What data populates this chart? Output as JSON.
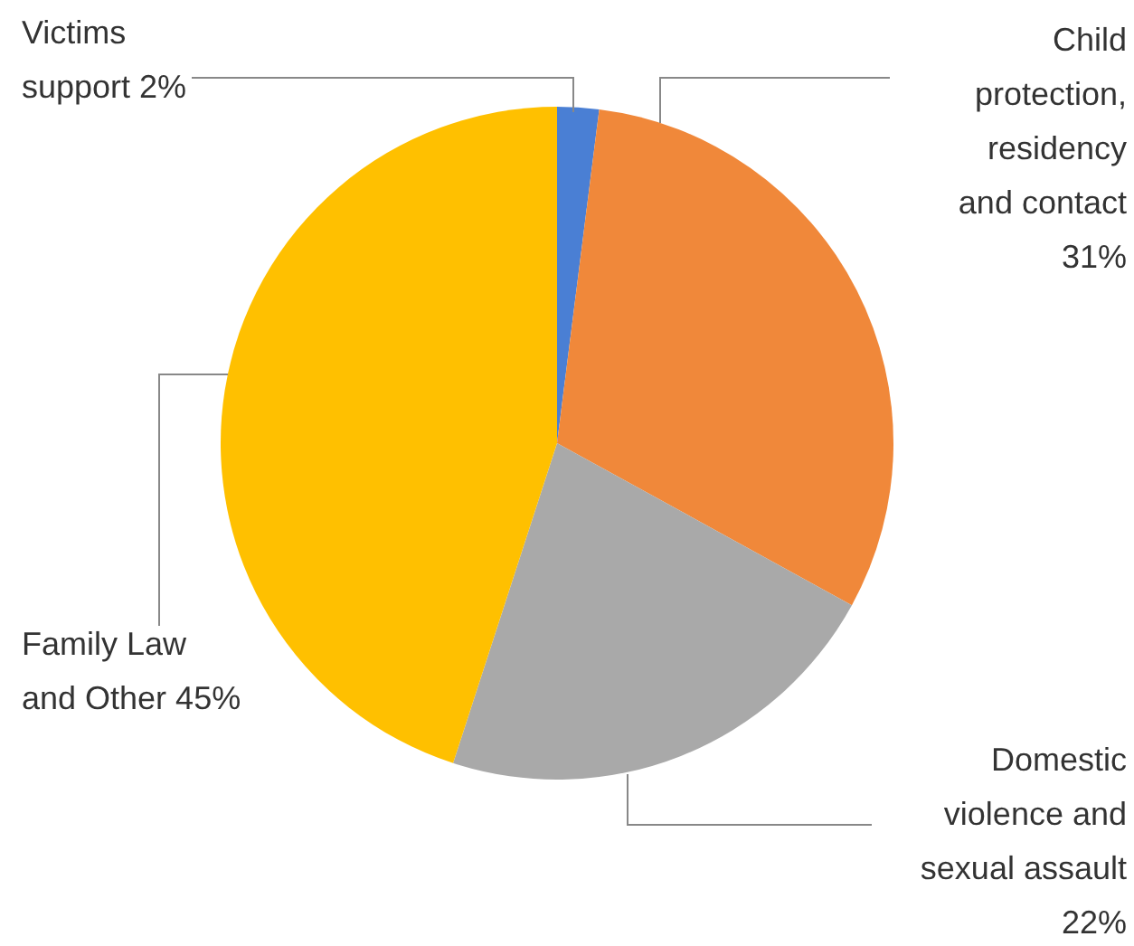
{
  "chart_data": {
    "type": "pie",
    "categories": [
      "Victims support",
      "Child protection, residency and contact",
      "Domestic violence and sexual assault",
      "Family Law and Other"
    ],
    "values": [
      2,
      31,
      22,
      45
    ],
    "value_labels": [
      "2%",
      "31%",
      "22%",
      "45%"
    ],
    "colors": [
      "#4a7fd4",
      "#f0883a",
      "#a9a9a9",
      "#ffc000"
    ]
  }
}
